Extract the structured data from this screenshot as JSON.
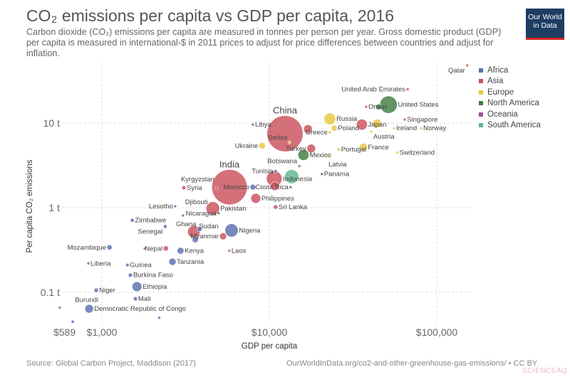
{
  "header": {
    "title": "CO₂ emissions per capita vs GDP per capita, 2016",
    "subtitle": "Carbon dioxide (CO₂) emissions per capita are measured in tonnes per person per year. Gross domestic product (GDP) per capita is measured in international-$ in 2011 prices to adjust for price differences between countries and adjust for inflation.",
    "logo_text": "Our World in Data"
  },
  "footer": {
    "source": "Source: Global Carbon Project, Maddison (2017)",
    "url": "OurWorldInData.org/co2-and-other-greenhouse-gas-emissions/ • CC BY",
    "watermark": "SCIENCEAQ.COM"
  },
  "chart_data": {
    "type": "scatter",
    "title": "CO₂ emissions per capita vs GDP per capita, 2016",
    "xlabel": "GDP per capita",
    "ylabel": "Per capita CO₂ emissions",
    "x_scale": "log",
    "y_scale": "log",
    "xlim": [
      589,
      160000
    ],
    "ylim": [
      0.042,
      48
    ],
    "x_ticks": [
      {
        "value": 589,
        "label": "$589"
      },
      {
        "value": 1000,
        "label": "$1,000"
      },
      {
        "value": 10000,
        "label": "$10,000"
      },
      {
        "value": 100000,
        "label": "$100,000"
      }
    ],
    "y_ticks": [
      {
        "value": 0.1,
        "label": "0.1 t"
      },
      {
        "value": 1,
        "label": "1 t"
      },
      {
        "value": 10,
        "label": "10 t"
      }
    ],
    "grid": true,
    "legend_position": "right",
    "legend": [
      {
        "name": "Africa",
        "color": "#5a6fb0"
      },
      {
        "name": "Asia",
        "color": "#c9505c"
      },
      {
        "name": "Europe",
        "color": "#e8c840"
      },
      {
        "name": "North America",
        "color": "#3f7c42"
      },
      {
        "name": "Oceania",
        "color": "#a14f9c"
      },
      {
        "name": "South America",
        "color": "#5fb78f"
      }
    ],
    "points": [
      {
        "label": "Qatar",
        "gdp": 152000,
        "co2": 48,
        "continent": "Asia",
        "pop_m": 2.6
      },
      {
        "label": "United Arab Emirates",
        "gdp": 67000,
        "co2": 25,
        "continent": "Asia",
        "pop_m": 9.3
      },
      {
        "label": "United States",
        "gdp": 51500,
        "co2": 16.5,
        "continent": "North America",
        "pop_m": 323
      },
      {
        "label": "Oman",
        "gdp": 37900,
        "co2": 15.6,
        "continent": "Asia",
        "pop_m": 4.4
      },
      {
        "label": "Russia",
        "gdp": 23000,
        "co2": 11.2,
        "continent": "Europe",
        "pop_m": 144
      },
      {
        "label": "Japan",
        "gdp": 35700,
        "co2": 9.6,
        "continent": "Asia",
        "pop_m": 127
      },
      {
        "label": "Singapore",
        "gdp": 64400,
        "co2": 11,
        "continent": "Asia",
        "pop_m": 5.6
      },
      {
        "label": "Poland",
        "gdp": 24400,
        "co2": 8.7,
        "continent": "Europe",
        "pop_m": 38
      },
      {
        "label": "Greece",
        "gdp": 23000,
        "co2": 7.8,
        "continent": "Europe",
        "pop_m": 10.8
      },
      {
        "label": "Austria",
        "gdp": 40600,
        "co2": 7.9,
        "continent": "Europe",
        "pop_m": 8.7
      },
      {
        "label": "Ireland",
        "gdp": 55600,
        "co2": 8.7,
        "continent": "Europe",
        "pop_m": 4.7
      },
      {
        "label": "Norway",
        "gdp": 80600,
        "co2": 8.7,
        "continent": "Europe",
        "pop_m": 5.2
      },
      {
        "label": "Switzerland",
        "gdp": 58300,
        "co2": 4.5,
        "continent": "Europe",
        "pop_m": 8.4
      },
      {
        "label": "France",
        "gdp": 36400,
        "co2": 5.2,
        "continent": "Europe",
        "pop_m": 65
      },
      {
        "label": "Portugal",
        "gdp": 26000,
        "co2": 4.9,
        "continent": "Europe",
        "pop_m": 10.3
      },
      {
        "label": "Turkey",
        "gdp": 17800,
        "co2": 5.0,
        "continent": "Asia",
        "pop_m": 80
      },
      {
        "label": "Latvia",
        "gdp": 21900,
        "co2": 4.2,
        "continent": "Europe",
        "pop_m": 2
      },
      {
        "label": "Mexico",
        "gdp": 16000,
        "co2": 4.2,
        "continent": "North America",
        "pop_m": 128
      },
      {
        "label": "Botswana",
        "gdp": 15100,
        "co2": 3.1,
        "continent": "Africa",
        "pop_m": 2.2
      },
      {
        "label": "Ukraine",
        "gdp": 9060,
        "co2": 5.4,
        "continent": "Europe",
        "pop_m": 45
      },
      {
        "label": "Serbia",
        "gdp": 13200,
        "co2": 5.9,
        "continent": "Europe",
        "pop_m": 7
      },
      {
        "label": "China",
        "gdp": 12400,
        "co2": 7.5,
        "continent": "Asia",
        "pop_m": 1379
      },
      {
        "label": "Libya",
        "gdp": 7980,
        "co2": 9.6,
        "continent": "Africa",
        "pop_m": 6.3
      },
      {
        "label": "Tunisia",
        "gdp": 10900,
        "co2": 2.7,
        "continent": "Africa",
        "pop_m": 11.4
      },
      {
        "label": "Indonesia",
        "gdp": 10700,
        "co2": 2.2,
        "continent": "Asia",
        "pop_m": 261
      },
      {
        "label": "Panama",
        "gdp": 20600,
        "co2": 2.5,
        "continent": "North America",
        "pop_m": 4
      },
      {
        "label": "Costa Rica",
        "gdp": 13400,
        "co2": 1.75,
        "continent": "North America",
        "pop_m": 4.9
      },
      {
        "label": "Morocco",
        "gdp": 7980,
        "co2": 1.75,
        "continent": "Africa",
        "pop_m": 35
      },
      {
        "label": "India",
        "gdp": 5780,
        "co2": 1.75,
        "continent": "Asia",
        "pop_m": 1324
      },
      {
        "label": "Kyrgyzstan",
        "gdp": 4840,
        "co2": 1.69,
        "continent": "Asia",
        "pop_m": 6
      },
      {
        "label": "Syria",
        "gdp": 3090,
        "co2": 1.72,
        "continent": "Asia",
        "pop_m": 18
      },
      {
        "label": "Philippines",
        "gdp": 8300,
        "co2": 1.29,
        "continent": "Asia",
        "pop_m": 103
      },
      {
        "label": "Sri Lanka",
        "gdp": 10900,
        "co2": 1.02,
        "continent": "Asia",
        "pop_m": 21
      },
      {
        "label": "Pakistan",
        "gdp": 4600,
        "co2": 0.98,
        "continent": "Asia",
        "pop_m": 193
      },
      {
        "label": "Nicaragua",
        "gdp": 4980,
        "co2": 0.86,
        "continent": "North America",
        "pop_m": 6.2
      },
      {
        "label": "Lesotho",
        "gdp": 2740,
        "co2": 1.04,
        "continent": "Africa",
        "pop_m": 2.2
      },
      {
        "label": "Djibouti",
        "gdp": 3050,
        "co2": 0.81,
        "continent": "Africa",
        "pop_m": 0.9
      },
      {
        "label": "Zimbabwe",
        "gdp": 1520,
        "co2": 0.71,
        "continent": "Africa",
        "pop_m": 16
      },
      {
        "label": "Senegal",
        "gdp": 2390,
        "co2": 0.6,
        "continent": "Africa",
        "pop_m": 15
      },
      {
        "label": "Ghana",
        "gdp": 3830,
        "co2": 0.56,
        "continent": "Africa",
        "pop_m": 28
      },
      {
        "label": "Nigeria",
        "gdp": 5950,
        "co2": 0.54,
        "continent": "Africa",
        "pop_m": 186
      },
      {
        "label": "Myanmar",
        "gdp": 5290,
        "co2": 0.46,
        "continent": "Asia",
        "pop_m": 53
      },
      {
        "label": "Sudan",
        "gdp": 3610,
        "co2": 0.42,
        "continent": "Africa",
        "pop_m": 40
      },
      {
        "label": "Nepal",
        "gdp": 2410,
        "co2": 0.33,
        "continent": "Asia",
        "pop_m": 29
      },
      {
        "label": "Kenya",
        "gdp": 2950,
        "co2": 0.31,
        "continent": "Africa",
        "pop_m": 48
      },
      {
        "label": "Laos",
        "gdp": 5770,
        "co2": 0.31,
        "continent": "Asia",
        "pop_m": 6.8
      },
      {
        "label": "Mozambique",
        "gdp": 1110,
        "co2": 0.34,
        "continent": "Africa",
        "pop_m": 29
      },
      {
        "label": "Tanzania",
        "gdp": 2640,
        "co2": 0.23,
        "continent": "Africa",
        "pop_m": 55
      },
      {
        "label": "Liberia",
        "gdp": 830,
        "co2": 0.22,
        "continent": "Africa",
        "pop_m": 4.6
      },
      {
        "label": "Guinea",
        "gdp": 1420,
        "co2": 0.21,
        "continent": "Africa",
        "pop_m": 12
      },
      {
        "label": "Burkina Faso",
        "gdp": 1480,
        "co2": 0.16,
        "continent": "Africa",
        "pop_m": 18.6
      },
      {
        "label": "Ethiopia",
        "gdp": 1620,
        "co2": 0.117,
        "continent": "Africa",
        "pop_m": 102
      },
      {
        "label": "Niger",
        "gdp": 925,
        "co2": 0.106,
        "continent": "Africa",
        "pop_m": 20.7
      },
      {
        "label": "Mali",
        "gdp": 1585,
        "co2": 0.084,
        "continent": "Africa",
        "pop_m": 18
      },
      {
        "label": "Democratic Republic of Congo",
        "gdp": 840,
        "co2": 0.064,
        "continent": "Africa",
        "pop_m": 79
      },
      {
        "label": "Burundi",
        "gdp": 670,
        "co2": 0.045,
        "continent": "Africa",
        "pop_m": 10.5
      },
      {
        "label": "",
        "gdp": 13600,
        "co2": 2.33,
        "continent": "South America",
        "pop_m": 208
      },
      {
        "label": "",
        "gdp": 3540,
        "co2": 0.52,
        "continent": "Asia",
        "pop_m": 163
      },
      {
        "label": "",
        "gdp": 44000,
        "co2": 9.9,
        "continent": "Europe",
        "pop_m": 82
      },
      {
        "label": "",
        "gdp": 45000,
        "co2": 15.5,
        "continent": "North America",
        "pop_m": 36
      },
      {
        "label": "",
        "gdp": 17000,
        "co2": 8.5,
        "continent": "Asia",
        "pop_m": 80
      },
      {
        "label": "",
        "gdp": 10800,
        "co2": 1.8,
        "continent": "Asia",
        "pop_m": 80
      },
      {
        "label": "",
        "gdp": 1800,
        "co2": 0.33,
        "continent": "Asia",
        "pop_m": 8
      },
      {
        "label": "",
        "gdp": 2200,
        "co2": 0.05,
        "continent": "Africa",
        "pop_m": 5
      },
      {
        "label": "",
        "gdp": 560,
        "co2": 0.066,
        "continent": "Africa",
        "pop_m": 4
      }
    ]
  }
}
